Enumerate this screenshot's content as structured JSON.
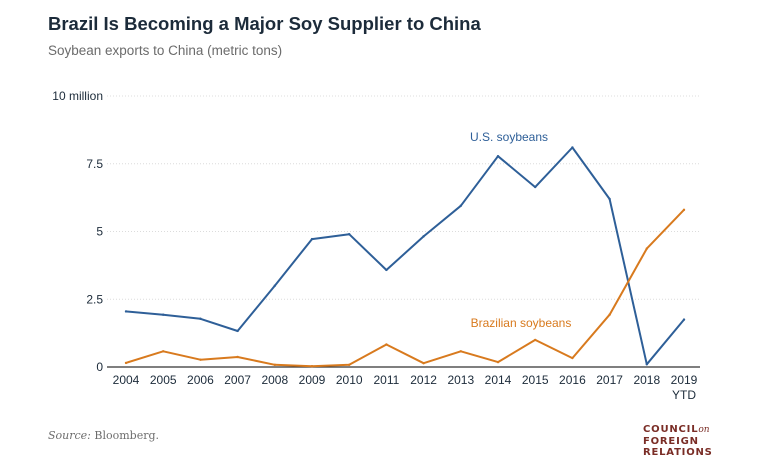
{
  "title": "Brazil Is Becoming a Major Soy Supplier to China",
  "subtitle": "Soybean exports to China (metric tons)",
  "source_label": "Source:",
  "source_text": "Bloomberg.",
  "logo": {
    "line1": "COUNCIL",
    "on": "on",
    "line2": "FOREIGN",
    "line3": "RELATIONS"
  },
  "colors": {
    "us": "#2e5f98",
    "brazil": "#d87a1e",
    "grid": "#dcdcdc",
    "axis": "#333333",
    "text": "#1c2b3a"
  },
  "chart_data": {
    "type": "line",
    "title": "Brazil Is Becoming a Major Soy Supplier to China",
    "subtitle": "Soybean exports to China (metric tons)",
    "x": [
      "2004",
      "2005",
      "2006",
      "2007",
      "2008",
      "2009",
      "2010",
      "2011",
      "2012",
      "2013",
      "2014",
      "2015",
      "2016",
      "2017",
      "2018",
      "2019"
    ],
    "x_sublabels": {
      "2019": "YTD"
    },
    "y_ticks": [
      0,
      2.5,
      5,
      7.5,
      10
    ],
    "y_tick_labels": [
      "0",
      "2.5",
      "5",
      "7.5",
      "10 million"
    ],
    "ylim": [
      0,
      10
    ],
    "grid": true,
    "series": [
      {
        "name": "U.S. soybeans",
        "color": "#2e5f98",
        "values": [
          2.05,
          1.93,
          1.78,
          1.33,
          3.0,
          4.72,
          4.9,
          3.58,
          4.82,
          5.95,
          7.78,
          6.64,
          8.1,
          6.2,
          0.1,
          1.75
        ]
      },
      {
        "name": "Brazilian soybeans",
        "color": "#d87a1e",
        "values": [
          0.15,
          0.58,
          0.27,
          0.37,
          0.08,
          0.03,
          0.08,
          0.83,
          0.14,
          0.58,
          0.18,
          1.0,
          0.33,
          1.93,
          4.37,
          5.8
        ]
      }
    ]
  }
}
